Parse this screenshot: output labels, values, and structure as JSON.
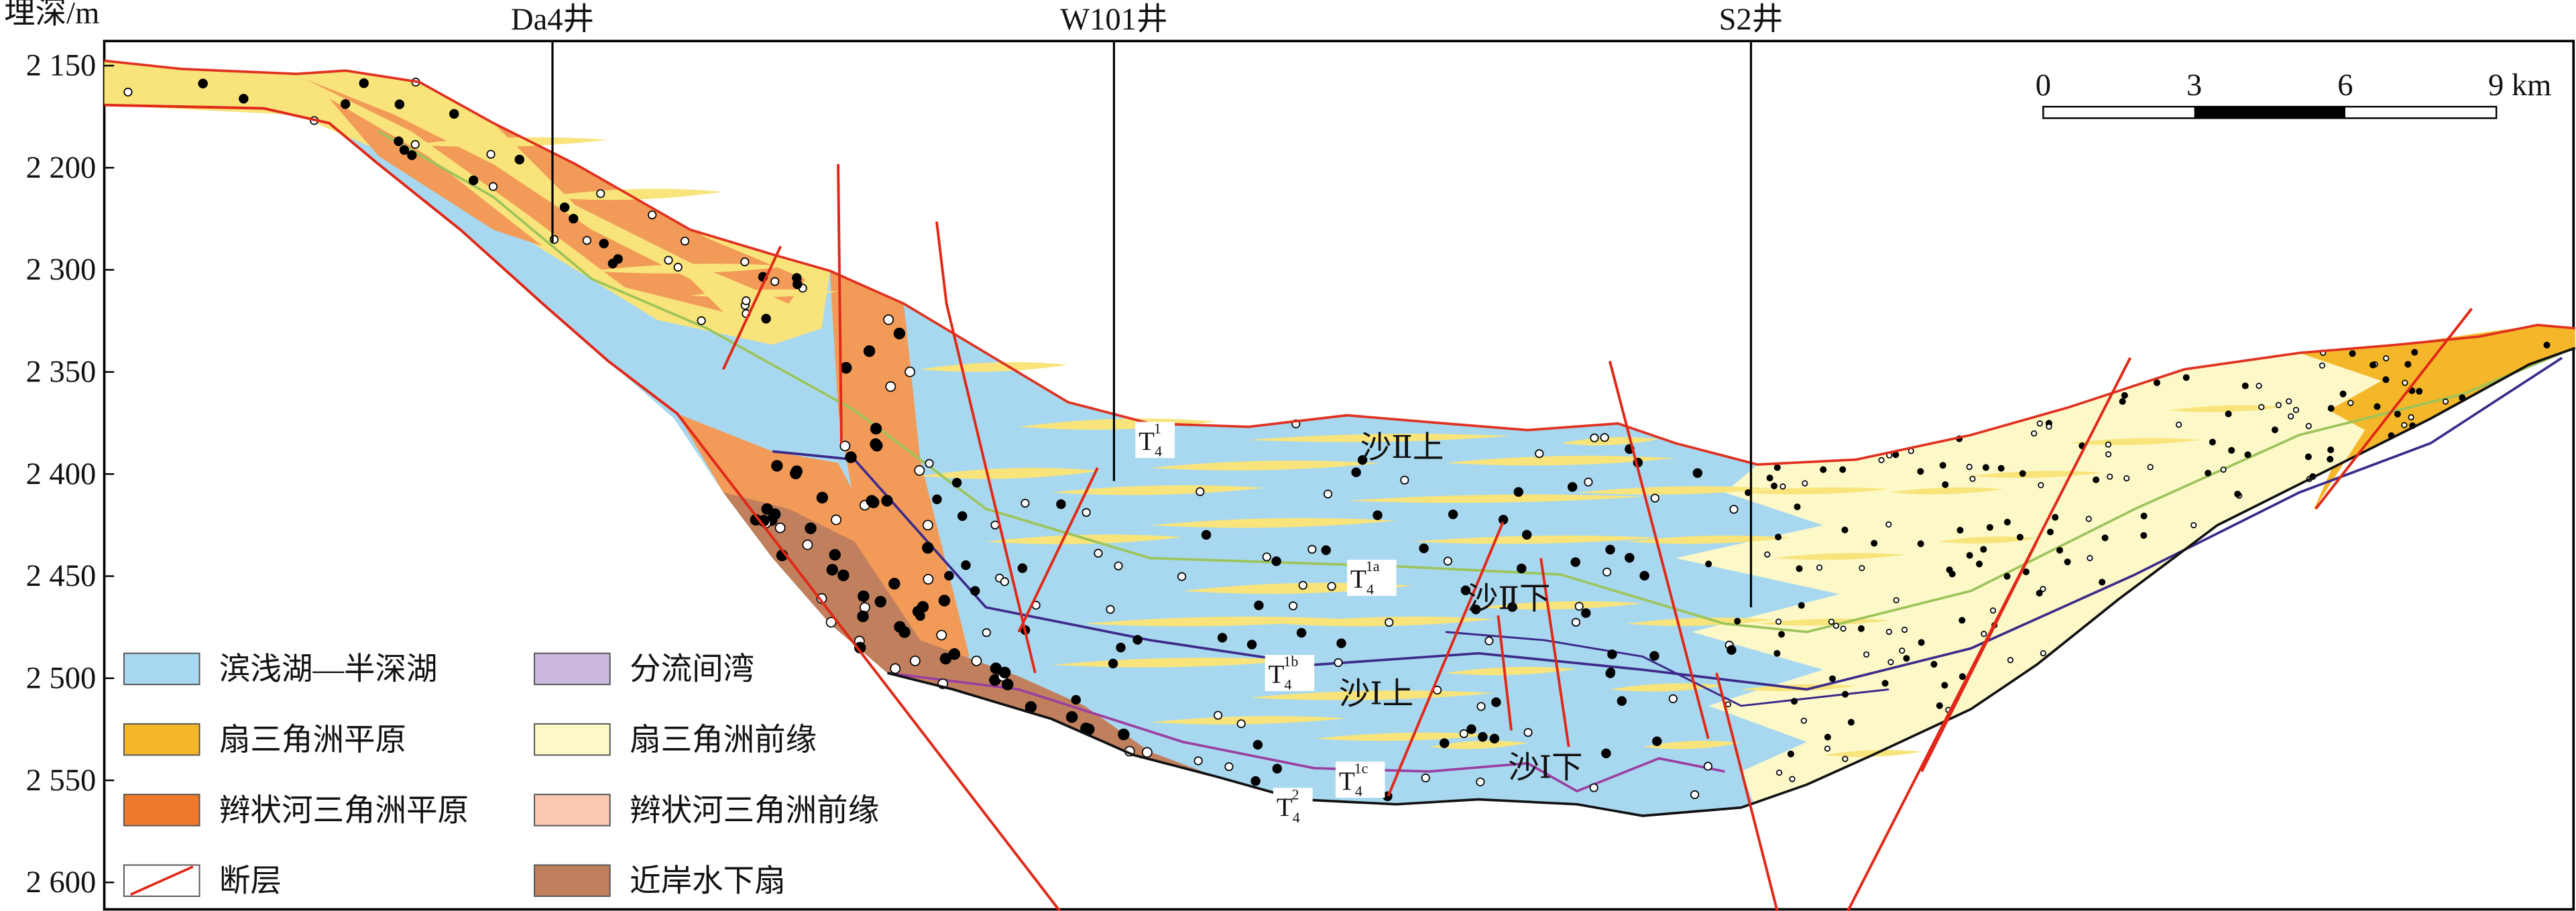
{
  "header": {
    "depth_label": "埋深/m"
  },
  "depth_ticks": [
    "2 150",
    "2 200",
    "2 300",
    "2 350",
    "2 400",
    "2 450",
    "2 500",
    "2 550",
    "2 600"
  ],
  "wells": [
    "Da4井",
    "W101井",
    "S2井"
  ],
  "scale_bar": [
    "0",
    "3",
    "6",
    "9 km"
  ],
  "units": [
    "沙Ⅱ上",
    "沙Ⅱ下",
    "沙Ⅰ上",
    "沙Ⅰ下"
  ],
  "horizons": [
    {
      "base": "T",
      "sub": "4",
      "sup": "1"
    },
    {
      "base": "T",
      "sub": "4",
      "sup": "1a"
    },
    {
      "base": "T",
      "sub": "4",
      "sup": "1b"
    },
    {
      "base": "T",
      "sub": "4",
      "sup": "1c"
    },
    {
      "base": "T",
      "sub": "4",
      "sup": "2"
    }
  ],
  "legend": [
    {
      "label": "滨浅湖—半深湖"
    },
    {
      "label": "扇三角洲平原"
    },
    {
      "label": "辫状河三角洲平原"
    },
    {
      "label": "断层"
    },
    {
      "label": "分流间湾"
    },
    {
      "label": "扇三角洲前缘"
    },
    {
      "label": "辫状河三角洲前缘"
    },
    {
      "label": "近岸水下扇"
    }
  ]
}
